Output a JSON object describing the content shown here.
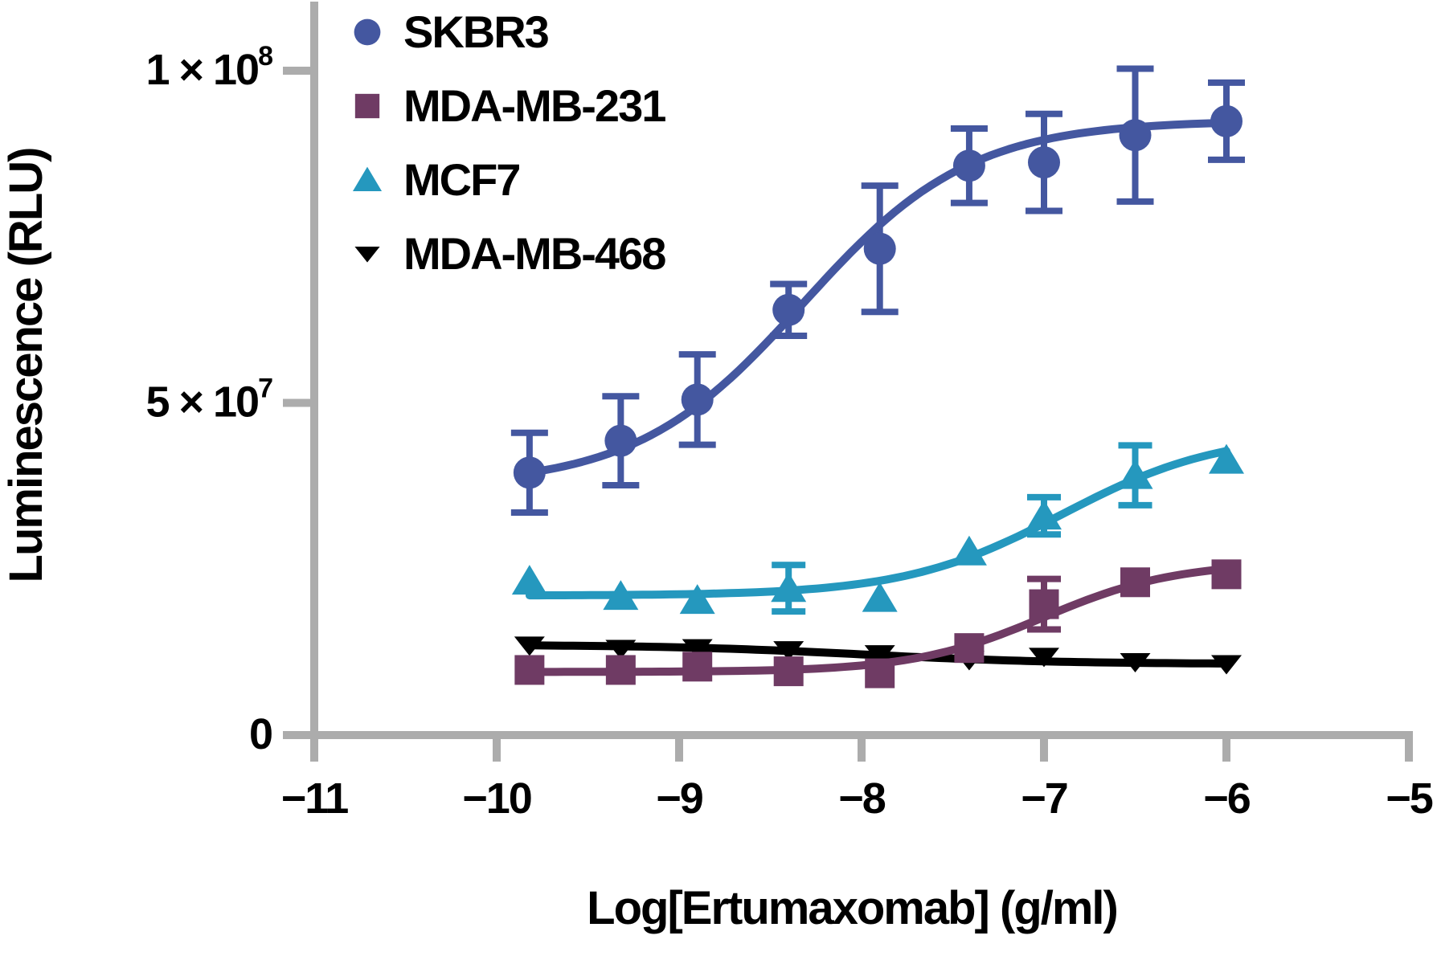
{
  "chart_data": {
    "type": "scatter-line",
    "title": "",
    "xlabel": "Log[Ertumaxomab] (g/ml)",
    "ylabel": "Luminescence (RLU)",
    "xlim": [
      -11,
      -5
    ],
    "ylim": [
      0,
      110000000
    ],
    "grid": false,
    "legend_position": "top-left-inside",
    "axis_color": "#ACACAC",
    "x_ticks": [
      {
        "value": -11,
        "label": "−11"
      },
      {
        "value": -10,
        "label": "−10"
      },
      {
        "value": -9,
        "label": "−9"
      },
      {
        "value": -8,
        "label": "−8"
      },
      {
        "value": -7,
        "label": "−7"
      },
      {
        "value": -6,
        "label": "−6"
      },
      {
        "value": -5,
        "label": "−5"
      }
    ],
    "y_ticks": [
      {
        "value": 0,
        "label": "0",
        "sup": ""
      },
      {
        "value": 50000000,
        "label": "5 × 10",
        "sup": "7"
      },
      {
        "value": 100000000,
        "label": "1 × 10",
        "sup": "8"
      }
    ],
    "x": [
      -9.82,
      -9.32,
      -8.9,
      -8.4,
      -7.9,
      -7.41,
      -7.0,
      -6.5,
      -6.0
    ],
    "series": [
      {
        "name": "SKBR3",
        "marker": "circle",
        "color": "#4457A0",
        "y": [
          39500000,
          44300000,
          50500000,
          64000000,
          73200000,
          85700000,
          86200000,
          90300000,
          92400000
        ],
        "err": [
          6000000,
          6700000,
          6800000,
          3900000,
          9500000,
          5600000,
          7300000,
          10000000,
          5800000
        ],
        "fit": {
          "base": 37500000,
          "amp": 55000000,
          "logEC50": -8.32,
          "hill": 0.95
        }
      },
      {
        "name": "MDA-MB-231",
        "marker": "square",
        "color": "#6F3B64",
        "y": [
          9800000,
          9800000,
          10300000,
          9600000,
          9300000,
          13100000,
          19700000,
          23000000,
          24200000
        ],
        "err": [
          0,
          0,
          0,
          0,
          0,
          0,
          3800000,
          0,
          0
        ],
        "fit": {
          "base": 9500000,
          "amp": 16500000,
          "logEC50": -7.0,
          "hill": 1.2
        }
      },
      {
        "name": "MCF7",
        "marker": "triangle-up",
        "color": "#2598BE",
        "y": [
          23200000,
          20900000,
          20300000,
          22100000,
          20600000,
          27600000,
          33000000,
          39100000,
          41400000
        ],
        "err": [
          0,
          0,
          0,
          3500000,
          0,
          0,
          2800000,
          4500000,
          0
        ],
        "fit": {
          "base": 21000000,
          "amp": 24500000,
          "logEC50": -6.9,
          "hill": 1.0
        }
      },
      {
        "name": "MDA-MB-468",
        "marker": "triangle-down",
        "color": "#000000",
        "y": [
          13500000,
          13000000,
          13100000,
          12800000,
          12200000,
          11300000,
          11800000,
          11000000,
          10700000
        ],
        "err": [
          0,
          0,
          0,
          0,
          0,
          0,
          0,
          0,
          0
        ],
        "fit": {
          "base": 10700000,
          "amp": 2900000,
          "logEC50": -8.0,
          "hill": -0.8
        }
      }
    ]
  }
}
